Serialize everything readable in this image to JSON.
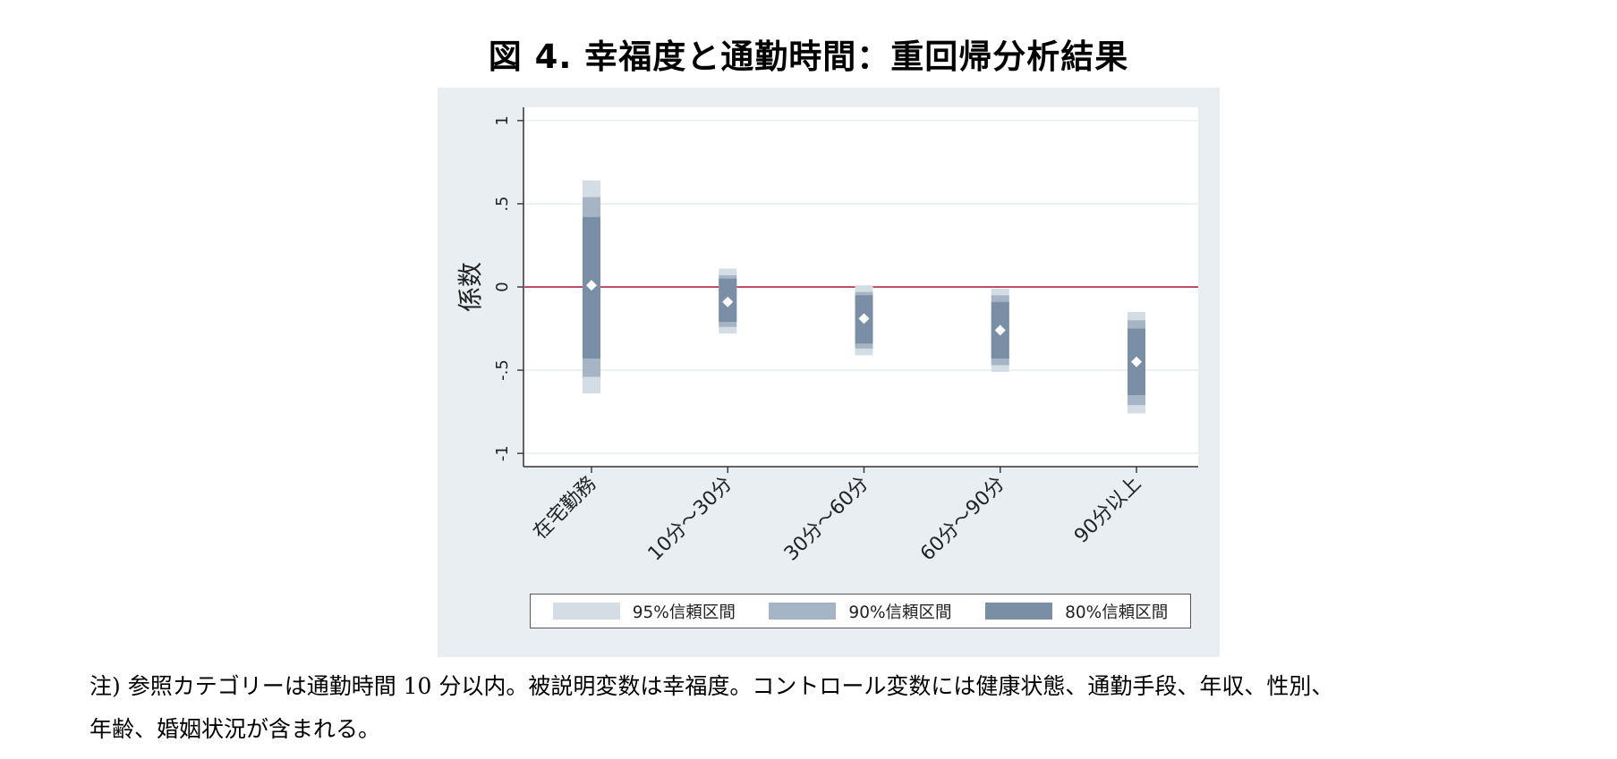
{
  "title": "図 4.  幸福度と通勤時間：重回帰分析結果",
  "note": {
    "line1": "注) 参照カテゴリーは通勤時間 10 分以内。被説明変数は幸福度。コントロール変数には健康状態、通勤手段、年収、性別、",
    "line2": "年齢、婚姻状況が含まれる。"
  },
  "colors": {
    "panel_bg": "#e8eef2",
    "plot_bg": "#ffffff",
    "ci95": "#d4dce4",
    "ci90": "#a5b5c5",
    "ci80": "#7a8fa6",
    "point": "#ffffff",
    "zero_line": "#c0506a",
    "grid": "#e4eaee"
  },
  "chart_data": {
    "type": "coefficient-interval",
    "ylabel": "係数",
    "xlabel": "",
    "ylim": [
      -1.08,
      1.08
    ],
    "yticks": [
      -1,
      -0.5,
      0,
      0.5,
      1
    ],
    "ytick_labels": [
      "-1",
      "-.5",
      "0",
      ".5",
      "1"
    ],
    "grid": true,
    "reference_line": 0,
    "categories": [
      "在宅勤務",
      "10分～30分",
      "30分～60分",
      "60分～90分",
      "90分以上"
    ],
    "coefficients": [
      0.01,
      -0.09,
      -0.19,
      -0.26,
      -0.45
    ],
    "ci95": [
      [
        -0.64,
        0.64
      ],
      [
        -0.28,
        0.11
      ],
      [
        -0.41,
        0.01
      ],
      [
        -0.51,
        -0.01
      ],
      [
        -0.76,
        -0.15
      ]
    ],
    "ci90": [
      [
        -0.54,
        0.54
      ],
      [
        -0.24,
        0.07
      ],
      [
        -0.37,
        -0.03
      ],
      [
        -0.47,
        -0.05
      ],
      [
        -0.71,
        -0.2
      ]
    ],
    "ci80": [
      [
        -0.43,
        0.42
      ],
      [
        -0.21,
        0.05
      ],
      [
        -0.34,
        -0.05
      ],
      [
        -0.43,
        -0.09
      ],
      [
        -0.65,
        -0.25
      ]
    ],
    "legend": {
      "position": "bottom",
      "entries": [
        "95%信頼区間",
        "90%信頼区間",
        "80%信頼区間"
      ]
    }
  }
}
